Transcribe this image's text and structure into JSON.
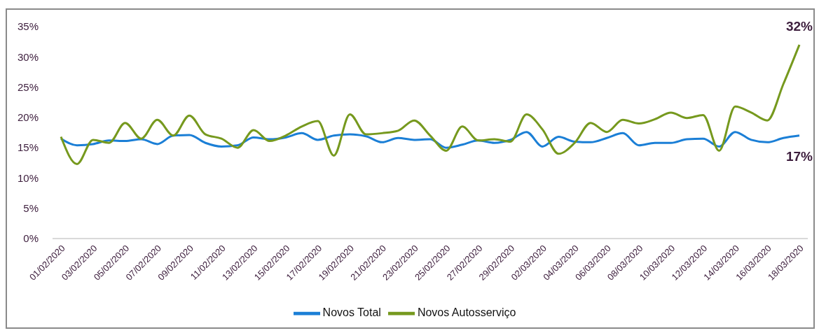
{
  "chart_data": {
    "type": "line",
    "categories": [
      "01/02/2020",
      null,
      "03/02/2020",
      null,
      "05/02/2020",
      null,
      "07/02/2020",
      null,
      "09/02/2020",
      null,
      "11/02/2020",
      null,
      "13/02/2020",
      null,
      "15/02/2020",
      null,
      "17/02/2020",
      null,
      "19/02/2020",
      null,
      "21/02/2020",
      null,
      "23/02/2020",
      null,
      "25/02/2020",
      null,
      "27/02/2020",
      null,
      "29/02/2020",
      null,
      "02/03/2020",
      null,
      "04/03/2020",
      null,
      "06/03/2020",
      null,
      "08/03/2020",
      null,
      "10/03/2020",
      null,
      "12/03/2020",
      null,
      "14/03/2020",
      null,
      "16/03/2020",
      null,
      "18/03/2020"
    ],
    "series": [
      {
        "name": "Novos Total",
        "color": "#1b7fd6",
        "values": [
          16.5,
          15.4,
          15.6,
          16.2,
          16.1,
          16.4,
          15.6,
          17.0,
          17.1,
          15.8,
          15.2,
          15.4,
          16.7,
          16.4,
          16.7,
          17.4,
          16.3,
          17.0,
          17.2,
          16.9,
          15.9,
          16.6,
          16.3,
          16.4,
          15.0,
          15.5,
          16.2,
          15.8,
          16.3,
          17.6,
          15.2,
          16.8,
          16.0,
          15.9,
          16.6,
          17.4,
          15.4,
          15.8,
          15.8,
          16.4,
          16.5,
          15.2,
          17.6,
          16.3,
          15.9,
          16.6,
          17
        ],
        "value_labels": [
          null,
          null,
          null,
          null,
          null,
          null,
          null,
          null,
          null,
          null,
          null,
          null,
          null,
          null,
          null,
          null,
          null,
          null,
          null,
          null,
          null,
          null,
          null,
          null,
          null,
          null,
          null,
          null,
          null,
          null,
          null,
          null,
          null,
          null,
          null,
          null,
          null,
          null,
          null,
          null,
          null,
          null,
          null,
          null,
          null,
          null,
          "17%"
        ]
      },
      {
        "name": "Novos Autosserviço",
        "color": "#76991e",
        "values": [
          16.8,
          12.3,
          16.3,
          15.8,
          19.1,
          16.5,
          19.6,
          17.0,
          20.3,
          17.2,
          16.5,
          15.0,
          17.9,
          16.1,
          17.0,
          18.5,
          19.4,
          13.7,
          20.5,
          17.2,
          17.4,
          17.8,
          19.5,
          17.0,
          14.5,
          18.5,
          16.2,
          16.4,
          16.0,
          20.5,
          18.0,
          14.0,
          15.8,
          19.1,
          17.6,
          19.6,
          19.0,
          19.7,
          20.8,
          19.9,
          20.4,
          14.5,
          21.8,
          20.8,
          19.5,
          25.5,
          32
        ],
        "value_labels": [
          null,
          null,
          null,
          null,
          null,
          null,
          null,
          null,
          null,
          null,
          null,
          null,
          null,
          null,
          null,
          null,
          null,
          null,
          null,
          null,
          null,
          null,
          null,
          null,
          null,
          null,
          null,
          null,
          null,
          null,
          null,
          null,
          null,
          null,
          null,
          null,
          null,
          null,
          null,
          null,
          null,
          null,
          null,
          null,
          null,
          null,
          "32%"
        ]
      }
    ],
    "ylim": [
      0,
      35
    ],
    "yticks": [
      {
        "value": 0,
        "label": "0%"
      },
      {
        "value": 5,
        "label": "5%"
      },
      {
        "value": 10,
        "label": "10%"
      },
      {
        "value": 15,
        "label": "15%"
      },
      {
        "value": 20,
        "label": "20%"
      },
      {
        "value": 25,
        "label": "25%"
      },
      {
        "value": 30,
        "label": "30%"
      },
      {
        "value": 35,
        "label": "35%"
      }
    ],
    "legend": "bottom"
  }
}
